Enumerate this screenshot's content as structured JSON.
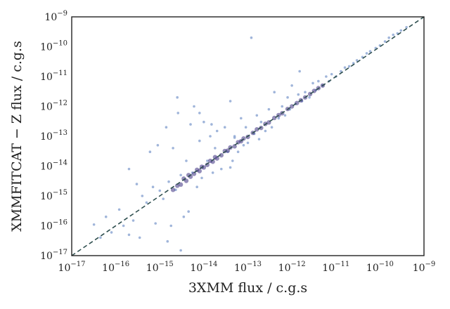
{
  "chart_data": {
    "type": "scatter",
    "title": "",
    "xlabel": "3XMM flux / c.g.s",
    "ylabel": "XMMFITCAT − Z flux / c.g.s",
    "xscale": "log",
    "yscale": "log",
    "xlim": [
      1e-17,
      1e-09
    ],
    "ylim": [
      1e-17,
      1e-09
    ],
    "x_ticks": [
      {
        "base": "10",
        "exp": "−17"
      },
      {
        "base": "10",
        "exp": "−16"
      },
      {
        "base": "10",
        "exp": "−15"
      },
      {
        "base": "10",
        "exp": "−14"
      },
      {
        "base": "10",
        "exp": "−13"
      },
      {
        "base": "10",
        "exp": "−12"
      },
      {
        "base": "10",
        "exp": "−11"
      },
      {
        "base": "10",
        "exp": "−10"
      },
      {
        "base": "10",
        "exp": "−9"
      }
    ],
    "y_ticks": [
      {
        "base": "10",
        "exp": "−17"
      },
      {
        "base": "10",
        "exp": "−16"
      },
      {
        "base": "10",
        "exp": "−15"
      },
      {
        "base": "10",
        "exp": "−14"
      },
      {
        "base": "10",
        "exp": "−13"
      },
      {
        "base": "10",
        "exp": "−12"
      },
      {
        "base": "10",
        "exp": "−11"
      },
      {
        "base": "10",
        "exp": "−10"
      },
      {
        "base": "10",
        "exp": "−9"
      }
    ],
    "reference_line": {
      "style": "dashed",
      "relation": "y = x",
      "color": "#2f4f4f"
    },
    "point_color": "#8fa8d4",
    "dense_color": "#3c2f80",
    "grid": false,
    "legend": false,
    "series": [
      {
        "points": [
          [
            3.2e-17,
            1.1e-16
          ],
          [
            4.5e-17,
            4e-17
          ],
          [
            6e-17,
            2e-16
          ],
          [
            8e-17,
            6e-17
          ],
          [
            1.2e-16,
            3.5e-16
          ],
          [
            1.5e-16,
            1e-16
          ],
          [
            2e-16,
            8e-15
          ],
          [
            2.5e-16,
            1.5e-16
          ],
          [
            3e-16,
            2.5e-15
          ],
          [
            3.5e-16,
            4e-17
          ],
          [
            4e-16,
            1e-15
          ],
          [
            5e-16,
            6e-16
          ],
          [
            6e-16,
            3e-14
          ],
          [
            7e-16,
            2e-15
          ],
          [
            8e-16,
            1.2e-16
          ],
          [
            9e-16,
            5e-14
          ],
          [
            1e-15,
            1.5e-15
          ],
          [
            1.2e-15,
            8e-16
          ],
          [
            1.4e-15,
            2e-13
          ],
          [
            1.6e-15,
            3e-15
          ],
          [
            1.8e-15,
            1e-16
          ],
          [
            2e-15,
            4e-14
          ],
          [
            2.3e-15,
            1.6e-15
          ],
          [
            2.6e-15,
            6e-13
          ],
          [
            3e-15,
            5e-15
          ],
          [
            3.5e-15,
            2e-16
          ],
          [
            4e-15,
            1.5e-14
          ],
          [
            4.5e-15,
            3e-16
          ],
          [
            5e-15,
            2.5e-13
          ],
          [
            5.5e-15,
            6e-15
          ],
          [
            6e-15,
            1e-12
          ],
          [
            7e-15,
            2e-15
          ],
          [
            8e-15,
            7e-14
          ],
          [
            9e-15,
            4e-15
          ],
          [
            1e-14,
            3e-13
          ],
          [
            1.2e-14,
            1.5e-14
          ],
          [
            1.4e-14,
            1e-13
          ],
          [
            1.6e-14,
            6e-15
          ],
          [
            1.8e-14,
            4e-14
          ],
          [
            2e-14,
            1.5e-13
          ],
          [
            2.5e-14,
            8e-15
          ],
          [
            3e-14,
            2e-13
          ],
          [
            3.5e-14,
            3e-14
          ],
          [
            4e-14,
            1.5e-12
          ],
          [
            4.5e-14,
            1.5e-14
          ],
          [
            5e-14,
            9e-14
          ],
          [
            6e-14,
            3e-14
          ],
          [
            7e-14,
            4e-13
          ],
          [
            8e-14,
            5e-14
          ],
          [
            9e-14,
            2e-13
          ],
          [
            1e-13,
            6e-14
          ],
          [
            1.2e-13,
            2e-10
          ],
          [
            1.4e-13,
            1.2e-13
          ],
          [
            1.6e-13,
            5e-13
          ],
          [
            1.8e-13,
            8e-14
          ],
          [
            2e-13,
            3e-13
          ],
          [
            2.5e-13,
            1.5e-13
          ],
          [
            3e-13,
            8e-13
          ],
          [
            3.5e-13,
            2e-13
          ],
          [
            4e-13,
            3e-12
          ],
          [
            5e-13,
            4e-13
          ],
          [
            6e-13,
            1e-12
          ],
          [
            7e-13,
            5e-13
          ],
          [
            8e-13,
            2e-12
          ],
          [
            9e-13,
            8e-13
          ],
          [
            1e-12,
            5e-12
          ],
          [
            1.2e-12,
            1.2e-12
          ],
          [
            1.4e-12,
            2.5e-12
          ],
          [
            1.5e-12,
            1.5e-11
          ],
          [
            1.7e-12,
            1.5e-12
          ],
          [
            2e-12,
            3e-12
          ],
          [
            2.5e-12,
            2e-12
          ],
          [
            3e-12,
            6e-12
          ],
          [
            3.5e-12,
            3.5e-12
          ],
          [
            4e-12,
            7e-12
          ],
          [
            5e-12,
            5e-12
          ],
          [
            6e-12,
            1e-11
          ],
          [
            7e-12,
            7e-12
          ],
          [
            8e-12,
            1.2e-11
          ],
          [
            1e-11,
            1e-11
          ],
          [
            1.3e-11,
            1.5e-11
          ],
          [
            1.6e-11,
            2e-11
          ],
          [
            2e-11,
            2.2e-11
          ],
          [
            2.5e-11,
            2.8e-11
          ],
          [
            3e-11,
            3.5e-11
          ],
          [
            4e-11,
            4.5e-11
          ],
          [
            5e-11,
            6e-11
          ],
          [
            6e-11,
            7e-11
          ],
          [
            8e-11,
            9e-11
          ],
          [
            1e-10,
            1.1e-10
          ],
          [
            1.3e-10,
            1.5e-10
          ],
          [
            1.6e-10,
            2e-10
          ],
          [
            2e-10,
            2.5e-10
          ],
          [
            2.5e-10,
            2.8e-10
          ],
          [
            3e-10,
            3.5e-10
          ],
          [
            4e-10,
            4.5e-10
          ],
          [
            1.5e-15,
            3e-17
          ],
          [
            2e-16,
            5e-17
          ],
          [
            3e-15,
            1.5e-17
          ],
          [
            4e-14,
            9e-15
          ],
          [
            1.5e-14,
            2.5e-13
          ],
          [
            8e-15,
            6e-13
          ],
          [
            2.5e-15,
            2e-12
          ],
          [
            5e-14,
            1e-13
          ]
        ],
        "dense_points": [
          [
            2e-15,
            1.6e-15
          ],
          [
            2.5e-15,
            2.2e-15
          ],
          [
            3e-15,
            2.4e-15
          ],
          [
            3.5e-15,
            3.8e-15
          ],
          [
            4e-15,
            3.2e-15
          ],
          [
            4.5e-15,
            5e-15
          ],
          [
            5e-15,
            4.4e-15
          ],
          [
            6e-15,
            5.5e-15
          ],
          [
            7e-15,
            7.5e-15
          ],
          [
            8e-15,
            6.8e-15
          ],
          [
            9e-15,
            9.5e-15
          ],
          [
            1e-14,
            9e-15
          ],
          [
            1.2e-14,
            1.1e-14
          ],
          [
            1.4e-14,
            1.5e-14
          ],
          [
            1.6e-14,
            1.4e-14
          ],
          [
            1.8e-14,
            2e-14
          ],
          [
            2e-14,
            1.8e-14
          ],
          [
            2.5e-14,
            2.3e-14
          ],
          [
            3e-14,
            3.2e-14
          ],
          [
            3.5e-14,
            3.3e-14
          ],
          [
            4e-14,
            4.2e-14
          ],
          [
            5e-14,
            4.6e-14
          ],
          [
            6e-14,
            6.3e-14
          ],
          [
            7e-14,
            6.8e-14
          ],
          [
            8e-14,
            8.4e-14
          ],
          [
            1e-13,
            9.5e-14
          ],
          [
            1.3e-13,
            1.3e-13
          ],
          [
            1.6e-13,
            1.7e-13
          ],
          [
            2e-13,
            1.9e-13
          ],
          [
            2.5e-13,
            2.6e-13
          ],
          [
            3e-13,
            2.9e-13
          ],
          [
            4e-13,
            4.1e-13
          ],
          [
            5e-13,
            5.1e-13
          ],
          [
            6e-13,
            5.9e-13
          ],
          [
            8e-13,
            8.2e-13
          ],
          [
            1e-12,
            1e-12
          ],
          [
            1.3e-12,
            1.3e-12
          ],
          [
            1.6e-12,
            1.6e-12
          ],
          [
            2e-12,
            2e-12
          ],
          [
            2.6e-12,
            2.6e-12
          ],
          [
            3.2e-12,
            3.3e-12
          ],
          [
            4e-12,
            4.1e-12
          ],
          [
            5e-12,
            5e-12
          ]
        ]
      }
    ]
  }
}
